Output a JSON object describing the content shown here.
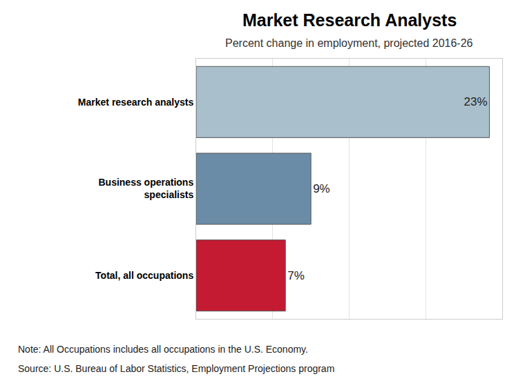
{
  "chart_data": {
    "type": "bar",
    "title": "Market Research Analysts",
    "subtitle": "Percent change in employment, projected 2016-26",
    "orientation": "horizontal",
    "categories": [
      "Market research analysts",
      "Business operations specialists",
      "Total, all occupations"
    ],
    "values": [
      23,
      9,
      7
    ],
    "value_labels": [
      "23%",
      "9%",
      "7%"
    ],
    "colors": [
      "#a9bfcc",
      "#6a8ca7",
      "#c41a32"
    ],
    "data_labels": true,
    "xlim": [
      0,
      24
    ],
    "xticks": [
      0,
      6,
      12,
      18,
      24
    ],
    "tick_labels": "y",
    "grid": true,
    "notes": [
      "Note: All Occupations includes all occupations in the U.S. Economy.",
      "Source: U.S. Bureau of Labor Statistics, Employment Projections program"
    ]
  }
}
